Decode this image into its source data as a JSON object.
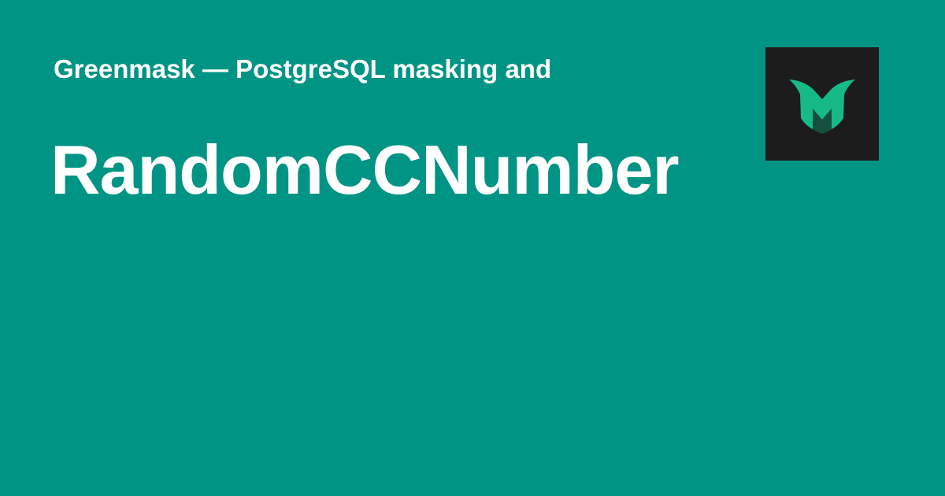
{
  "header": {
    "site_title": "Greenmask — PostgreSQL masking and"
  },
  "main": {
    "page_title": "RandomCCNumber"
  },
  "logo": {
    "icon": "greenmask-logo-icon",
    "background": "#1c1c1c",
    "mark_color": "#17b987"
  },
  "colors": {
    "background": "#009485",
    "text": "#ffffff"
  }
}
